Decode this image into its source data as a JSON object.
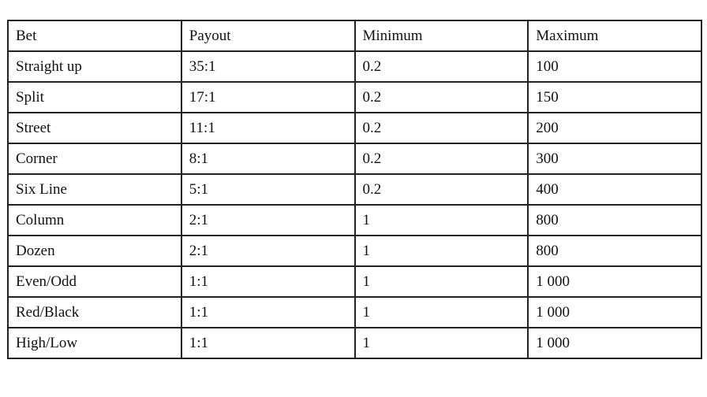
{
  "table": {
    "headers": [
      "Bet",
      "Payout",
      "Minimum",
      "Maximum"
    ],
    "rows": [
      [
        "Straight up",
        "35:1",
        "0.2",
        "100"
      ],
      [
        "Split",
        "17:1",
        "0.2",
        "150"
      ],
      [
        "Street",
        "11:1",
        "0.2",
        "200"
      ],
      [
        "Corner",
        "8:1",
        "0.2",
        "300"
      ],
      [
        "Six Line",
        "5:1",
        "0.2",
        "400"
      ],
      [
        "Column",
        "2:1",
        "1",
        "800"
      ],
      [
        "Dozen",
        "2:1",
        "1",
        "800"
      ],
      [
        "Even/Odd",
        "1:1",
        "1",
        "1 000"
      ],
      [
        "Red/Black",
        "1:1",
        "1",
        "1 000"
      ],
      [
        "High/Low",
        "1:1",
        "1",
        "1 000"
      ]
    ]
  }
}
